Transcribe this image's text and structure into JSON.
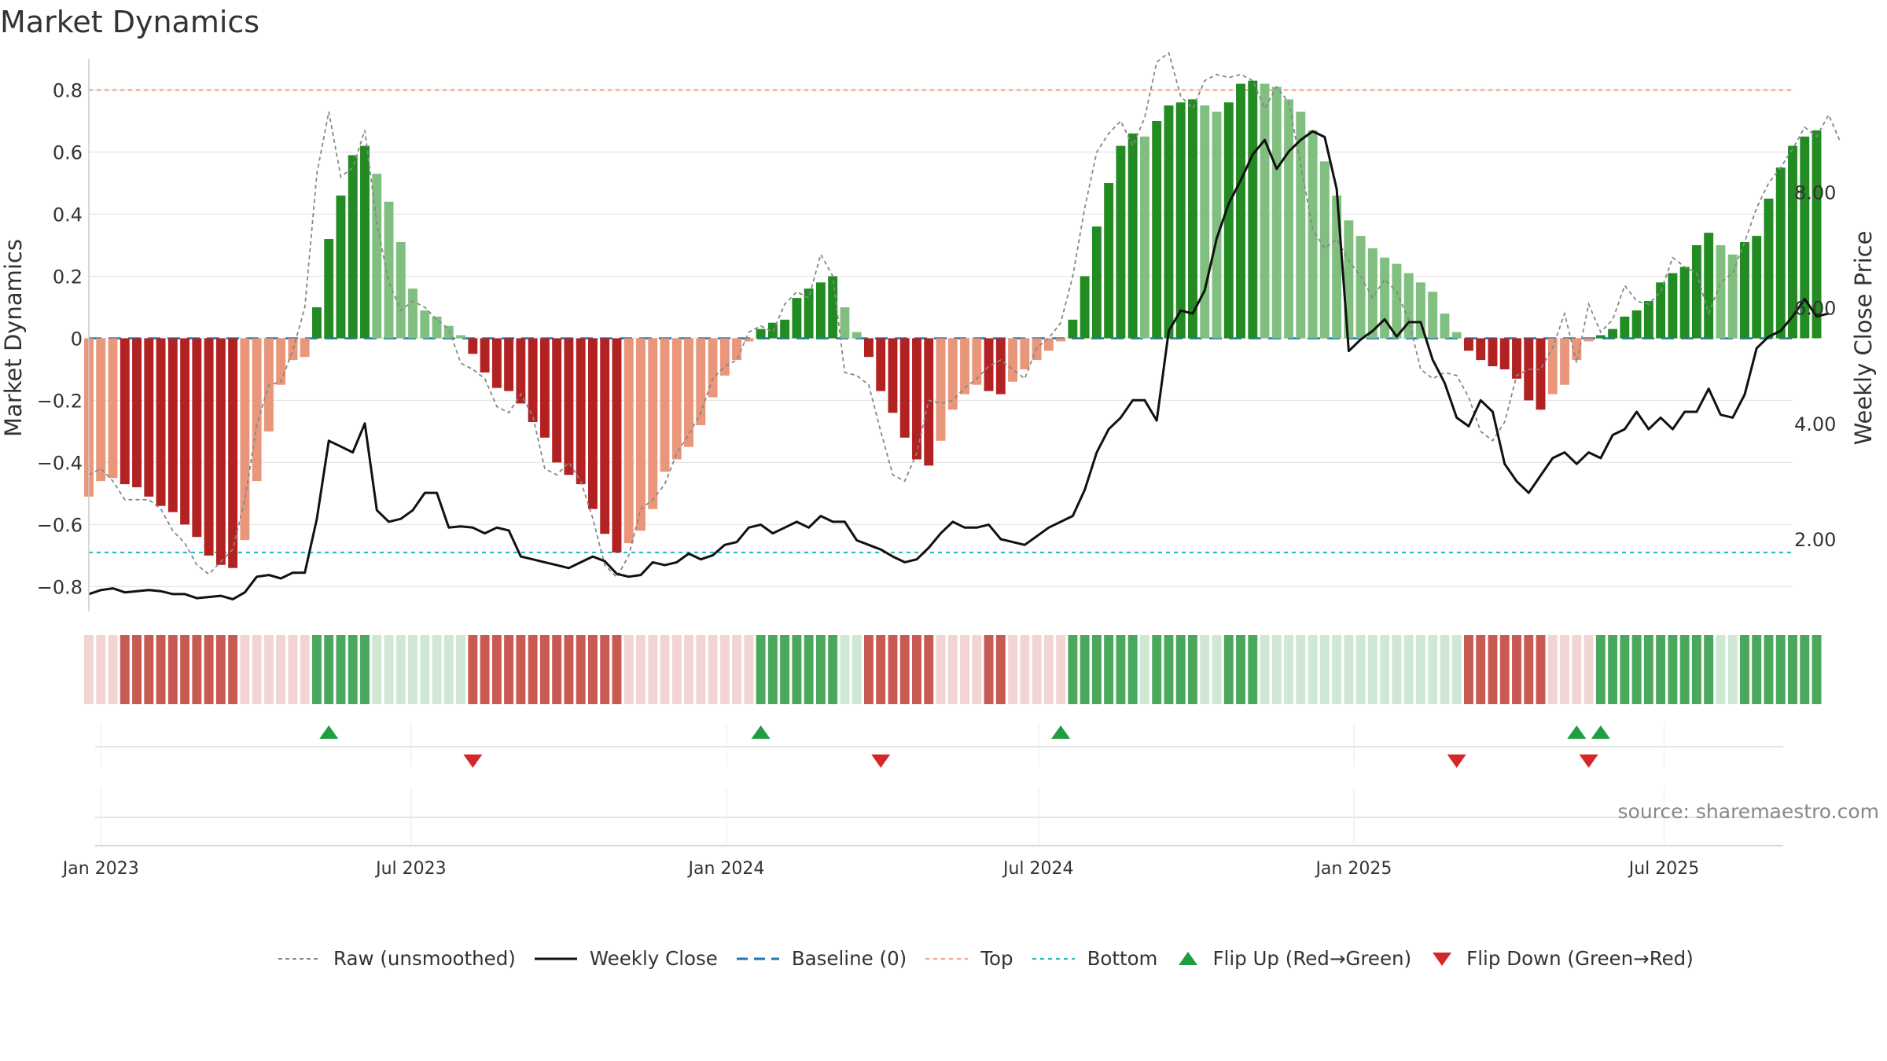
{
  "title": "Market Dynamics",
  "source": "source: sharemaestro.com",
  "colors": {
    "strong_green": "#228b22",
    "light_green": "#80bf80",
    "strong_red": "#b22222",
    "light_red": "#e9967a",
    "raw_line": "#888888",
    "close_line": "#111111",
    "baseline": "#1f77b4",
    "top": "#f4a582",
    "bottom": "#20c0c0",
    "flip_up": "#1e9e3e",
    "flip_down": "#d62728"
  },
  "legend": [
    {
      "key": "raw",
      "label": "Raw (unsmoothed)"
    },
    {
      "key": "close",
      "label": "Weekly Close"
    },
    {
      "key": "baseline",
      "label": "Baseline (0)"
    },
    {
      "key": "top",
      "label": "Top"
    },
    {
      "key": "bottom",
      "label": "Bottom"
    },
    {
      "key": "flip_up",
      "label": "Flip Up (Red→Green)"
    },
    {
      "key": "flip_down",
      "label": "Flip Down (Green→Red)"
    }
  ],
  "chart_data": {
    "type": "bar",
    "title": "Market Dynamics",
    "ylabel_left": "Market Dynamics",
    "ylabel_right": "Weekly Close Price",
    "ylim_left": [
      -0.88,
      0.9
    ],
    "yticks_left": [
      -0.8,
      -0.6,
      -0.4,
      -0.2,
      0,
      0.2,
      0.4,
      0.6,
      0.8
    ],
    "ytick_labels_left": [
      "−0.8",
      "−0.6",
      "−0.4",
      "−0.2",
      "0",
      "0.2",
      "0.4",
      "0.6",
      "0.8"
    ],
    "ylim_right": [
      0.75,
      10.3
    ],
    "yticks_right": [
      2,
      4,
      6,
      8
    ],
    "ytick_labels_right": [
      "2.00",
      "4.00",
      "6.00",
      "8.00"
    ],
    "x_start": "2022-12-25",
    "x_end": "2025-09-14",
    "x_ticks": [
      {
        "date": "2023-01-01",
        "label": "Jan 2023"
      },
      {
        "date": "2023-07-01",
        "label": "Jul 2023"
      },
      {
        "date": "2024-01-01",
        "label": "Jan 2024"
      },
      {
        "date": "2024-07-01",
        "label": "Jul 2024"
      },
      {
        "date": "2025-01-01",
        "label": "Jan 2025"
      },
      {
        "date": "2025-07-01",
        "label": "Jul 2025"
      }
    ],
    "reference_lines": {
      "top": 0.8,
      "bottom": -0.69,
      "baseline": 0
    },
    "grid": true,
    "series": [
      {
        "name": "Market Dynamics",
        "first_date": "2022-12-25",
        "step_days": 7,
        "values": [
          -0.51,
          -0.46,
          -0.45,
          -0.47,
          -0.48,
          -0.51,
          -0.54,
          -0.56,
          -0.6,
          -0.64,
          -0.7,
          -0.73,
          -0.74,
          -0.65,
          -0.46,
          -0.3,
          -0.15,
          -0.07,
          -0.06,
          0.1,
          0.32,
          0.46,
          0.59,
          0.62,
          0.53,
          0.44,
          0.31,
          0.16,
          0.09,
          0.07,
          0.04,
          0.01,
          -0.05,
          -0.11,
          -0.16,
          -0.17,
          -0.21,
          -0.27,
          -0.32,
          -0.4,
          -0.44,
          -0.47,
          -0.55,
          -0.63,
          -0.69,
          -0.66,
          -0.62,
          -0.55,
          -0.43,
          -0.39,
          -0.35,
          -0.28,
          -0.19,
          -0.12,
          -0.07,
          -0.01,
          0.03,
          0.05,
          0.06,
          0.13,
          0.16,
          0.18,
          0.2,
          0.1,
          0.02,
          -0.06,
          -0.17,
          -0.24,
          -0.32,
          -0.39,
          -0.41,
          -0.33,
          -0.23,
          -0.18,
          -0.15,
          -0.17,
          -0.18,
          -0.14,
          -0.1,
          -0.07,
          -0.04,
          -0.01,
          0.06,
          0.2,
          0.36,
          0.5,
          0.62,
          0.66,
          0.65,
          0.7,
          0.75,
          0.76,
          0.77,
          0.75,
          0.73,
          0.76,
          0.82,
          0.83,
          0.82,
          0.81,
          0.77,
          0.73,
          0.67,
          0.57,
          0.46,
          0.38,
          0.33,
          0.29,
          0.26,
          0.24,
          0.21,
          0.18,
          0.15,
          0.08,
          0.02,
          -0.04,
          -0.07,
          -0.09,
          -0.1,
          -0.13,
          -0.2,
          -0.23,
          -0.18,
          -0.15,
          -0.07,
          -0.01,
          0.01,
          0.03,
          0.07,
          0.09,
          0.12,
          0.18,
          0.21,
          0.23,
          0.3,
          0.34,
          0.3,
          0.27,
          0.31,
          0.33,
          0.45,
          0.55,
          0.62,
          0.65,
          0.67
        ]
      },
      {
        "name": "Raw (unsmoothed)",
        "first_date": "2022-12-25",
        "step_days": 7,
        "values": [
          -0.44,
          -0.42,
          -0.46,
          -0.52,
          -0.52,
          -0.52,
          -0.55,
          -0.62,
          -0.66,
          -0.73,
          -0.76,
          -0.72,
          -0.68,
          -0.52,
          -0.28,
          -0.15,
          -0.14,
          -0.04,
          0.1,
          0.53,
          0.73,
          0.52,
          0.55,
          0.67,
          0.37,
          0.18,
          0.09,
          0.12,
          0.1,
          0.06,
          0.03,
          -0.08,
          -0.1,
          -0.13,
          -0.22,
          -0.24,
          -0.18,
          -0.25,
          -0.42,
          -0.44,
          -0.4,
          -0.46,
          -0.58,
          -0.73,
          -0.77,
          -0.7,
          -0.55,
          -0.52,
          -0.47,
          -0.37,
          -0.31,
          -0.24,
          -0.13,
          -0.09,
          -0.07,
          0.02,
          0.04,
          0.02,
          0.11,
          0.15,
          0.13,
          0.27,
          0.2,
          -0.11,
          -0.12,
          -0.15,
          -0.3,
          -0.44,
          -0.46,
          -0.37,
          -0.2,
          -0.21,
          -0.2,
          -0.16,
          -0.13,
          -0.09,
          -0.07,
          -0.1,
          -0.13,
          -0.03,
          0.0,
          0.05,
          0.2,
          0.42,
          0.6,
          0.66,
          0.7,
          0.62,
          0.71,
          0.89,
          0.92,
          0.78,
          0.74,
          0.83,
          0.85,
          0.84,
          0.85,
          0.83,
          0.74,
          0.81,
          0.76,
          0.56,
          0.35,
          0.29,
          0.32,
          0.25,
          0.2,
          0.13,
          0.19,
          0.15,
          0.06,
          -0.1,
          -0.13,
          -0.11,
          -0.12,
          -0.19,
          -0.3,
          -0.33,
          -0.27,
          -0.12,
          -0.1,
          -0.1,
          -0.03,
          0.08,
          -0.08,
          0.11,
          0.02,
          0.06,
          0.17,
          0.12,
          0.11,
          0.15,
          0.26,
          0.23,
          0.21,
          0.08,
          0.18,
          0.21,
          0.31,
          0.42,
          0.5,
          0.55,
          0.61,
          0.68,
          0.65,
          0.72,
          0.63
        ]
      },
      {
        "name": "Weekly Close",
        "first_date": "2022-12-25",
        "step_days": 7,
        "values": [
          1.05,
          1.12,
          1.15,
          1.08,
          1.1,
          1.12,
          1.1,
          1.05,
          1.05,
          0.98,
          1.0,
          1.02,
          0.96,
          1.08,
          1.35,
          1.38,
          1.32,
          1.42,
          1.42,
          2.35,
          3.7,
          3.6,
          3.5,
          4.0,
          2.5,
          2.3,
          2.35,
          2.5,
          2.8,
          2.8,
          2.2,
          2.22,
          2.2,
          2.1,
          2.2,
          2.15,
          1.7,
          1.65,
          1.6,
          1.55,
          1.5,
          1.6,
          1.7,
          1.62,
          1.4,
          1.35,
          1.38,
          1.6,
          1.55,
          1.6,
          1.75,
          1.65,
          1.72,
          1.9,
          1.95,
          2.2,
          2.25,
          2.1,
          2.2,
          2.3,
          2.2,
          2.4,
          2.3,
          2.3,
          1.98,
          1.9,
          1.82,
          1.7,
          1.6,
          1.65,
          1.85,
          2.1,
          2.3,
          2.2,
          2.2,
          2.25,
          2.0,
          1.95,
          1.9,
          2.05,
          2.2,
          2.3,
          2.4,
          2.85,
          3.5,
          3.9,
          4.1,
          4.4,
          4.4,
          4.05,
          5.6,
          5.95,
          5.9,
          6.3,
          7.2,
          7.8,
          8.2,
          8.65,
          8.9,
          8.4,
          8.7,
          8.9,
          9.05,
          8.95,
          8.05,
          5.25,
          5.45,
          5.6,
          5.8,
          5.5,
          5.75,
          5.75,
          5.1,
          4.7,
          4.1,
          3.95,
          4.4,
          4.2,
          3.3,
          3.0,
          2.8,
          3.1,
          3.4,
          3.5,
          3.3,
          3.5,
          3.4,
          3.8,
          3.9,
          4.2,
          3.9,
          4.1,
          3.9,
          4.2,
          4.2,
          4.6,
          4.15,
          4.1,
          4.5,
          5.3,
          5.5,
          5.6,
          5.85,
          6.15,
          5.85,
          5.9
        ]
      }
    ],
    "flip_up_dates": [
      "2023-05-14",
      "2024-01-21",
      "2024-07-14",
      "2025-05-11",
      "2025-05-25"
    ],
    "flip_down_dates": [
      "2023-08-06",
      "2024-03-31",
      "2025-03-02",
      "2025-05-18"
    ],
    "regime_strip": {
      "strong_green": "#4aa85c",
      "light_green": "#cfe8d3",
      "strong_red": "#c85a52",
      "light_red": "#f2d5d3"
    }
  }
}
